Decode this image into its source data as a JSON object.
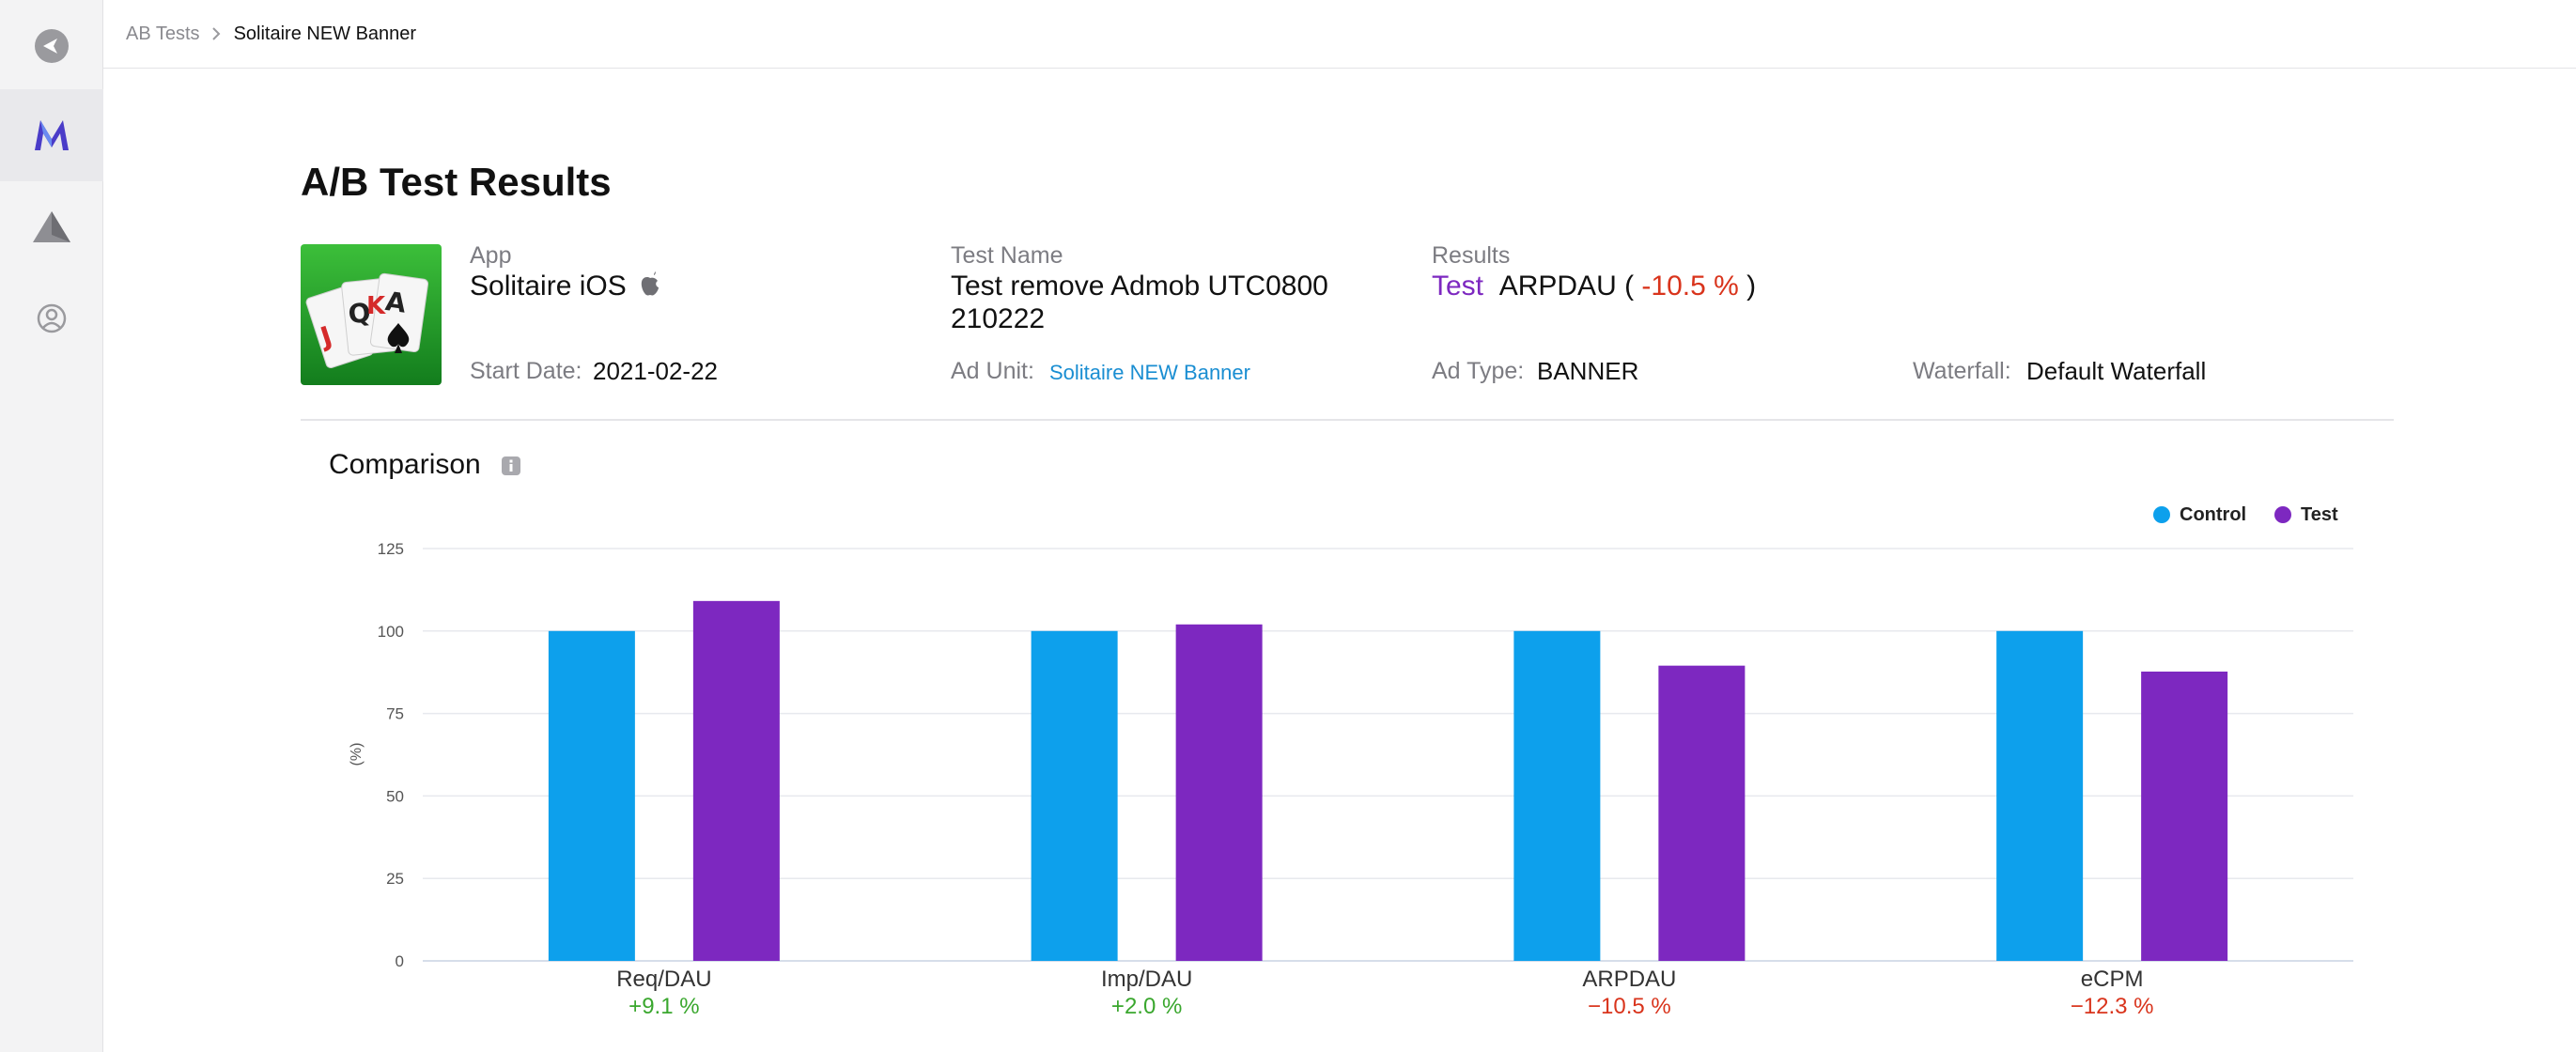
{
  "breadcrumb": {
    "parent": "AB Tests",
    "current": "Solitaire NEW Banner"
  },
  "page": {
    "title": "A/B Test Results"
  },
  "app": {
    "label": "App",
    "name": "Solitaire iOS",
    "platform_icon": "apple-icon",
    "start_date_label": "Start Date:",
    "start_date": "2021-02-22"
  },
  "test": {
    "name_label": "Test Name",
    "name_line1": "Test remove Admob UTC0800",
    "name_line2": "210222",
    "ad_unit_label": "Ad Unit:",
    "ad_unit": "Solitaire NEW Banner"
  },
  "results": {
    "label": "Results",
    "winner": "Test",
    "metric": "ARPDAU (",
    "delta": "-10.5 %",
    "close": ")",
    "ad_type_label": "Ad Type:",
    "ad_type": "BANNER",
    "waterfall_label": "Waterfall:",
    "waterfall": "Default Waterfall"
  },
  "comparison": {
    "title": "Comparison"
  },
  "colors": {
    "control": "#0da0ec",
    "test": "#7d28c0",
    "positive": "#3aa72e",
    "negative": "#d9341c",
    "link": "#1a8ed2"
  },
  "chart_data": {
    "type": "bar",
    "categories": [
      "Req/DAU",
      "Imp/DAU",
      "ARPDAU",
      "eCPM"
    ],
    "category_deltas": [
      "+9.1 %",
      "+2.0 %",
      "−10.5 %",
      "−12.3 %"
    ],
    "series": [
      {
        "name": "Control",
        "values": [
          100,
          100,
          100,
          100
        ]
      },
      {
        "name": "Test",
        "values": [
          109.1,
          102.0,
          89.5,
          87.7
        ]
      }
    ],
    "ylabel": "(%)",
    "yticks": [
      0,
      25,
      50,
      75,
      100,
      125
    ],
    "ylim": [
      0,
      125
    ],
    "grid": true,
    "legend": "top-right"
  }
}
